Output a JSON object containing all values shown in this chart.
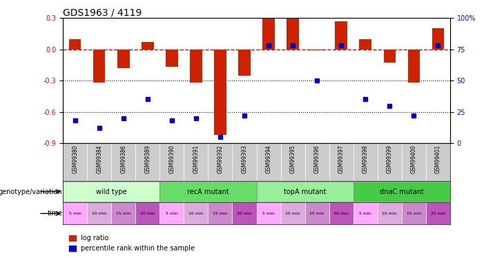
{
  "title": "GDS1963 / 4119",
  "samples": [
    "GSM99380",
    "GSM99384",
    "GSM99386",
    "GSM99389",
    "GSM99390",
    "GSM99391",
    "GSM99392",
    "GSM99393",
    "GSM99394",
    "GSM99395",
    "GSM99396",
    "GSM99397",
    "GSM99398",
    "GSM99399",
    "GSM99400",
    "GSM99401"
  ],
  "log_ratio": [
    0.1,
    -0.32,
    -0.18,
    0.07,
    -0.17,
    -0.32,
    -0.82,
    -0.25,
    0.3,
    0.3,
    -0.01,
    0.27,
    0.1,
    -0.13,
    -0.32,
    0.2
  ],
  "percentile": [
    18,
    12,
    20,
    35,
    18,
    20,
    5,
    22,
    78,
    78,
    50,
    78,
    35,
    30,
    22,
    78
  ],
  "ylim_left": [
    -0.9,
    0.3
  ],
  "ylim_right": [
    0,
    100
  ],
  "left_ticks": [
    0.3,
    0.0,
    -0.3,
    -0.6,
    -0.9
  ],
  "right_ticks": [
    100,
    75,
    50,
    25,
    0
  ],
  "groups": [
    {
      "label": "wild type",
      "color": "#ccffcc",
      "start": 0,
      "end": 4
    },
    {
      "label": "recA mutant",
      "color": "#66dd66",
      "start": 4,
      "end": 8
    },
    {
      "label": "topA mutant",
      "color": "#99ee99",
      "start": 8,
      "end": 12
    },
    {
      "label": "dnaC mutant",
      "color": "#44cc44",
      "start": 12,
      "end": 16
    }
  ],
  "time_labels": [
    "5 min",
    "10 min",
    "15 min",
    "20 min",
    "5 min",
    "10 min",
    "15 min",
    "20 min",
    "5 min",
    "10 min",
    "15 min",
    "20 min",
    "5 min",
    "10 min",
    "15 min",
    "20 min"
  ],
  "time_colors": [
    "#ffaaff",
    "#ddaadd",
    "#cc88cc",
    "#bb55bb",
    "#ffaaff",
    "#ddaadd",
    "#cc88cc",
    "#bb55bb",
    "#ffaaff",
    "#ddaadd",
    "#cc88cc",
    "#bb55bb",
    "#ffaaff",
    "#ddaadd",
    "#cc88cc",
    "#bb55bb"
  ],
  "bar_color": "#cc2200",
  "dot_color": "#0000cc",
  "dashed_line_color": "#cc0000",
  "grid_color": "#000000",
  "bg_color": "#ffffff",
  "label_row1": "genotype/variation",
  "label_row2": "time",
  "legend_bar": "log ratio",
  "legend_dot": "percentile rank within the sample"
}
